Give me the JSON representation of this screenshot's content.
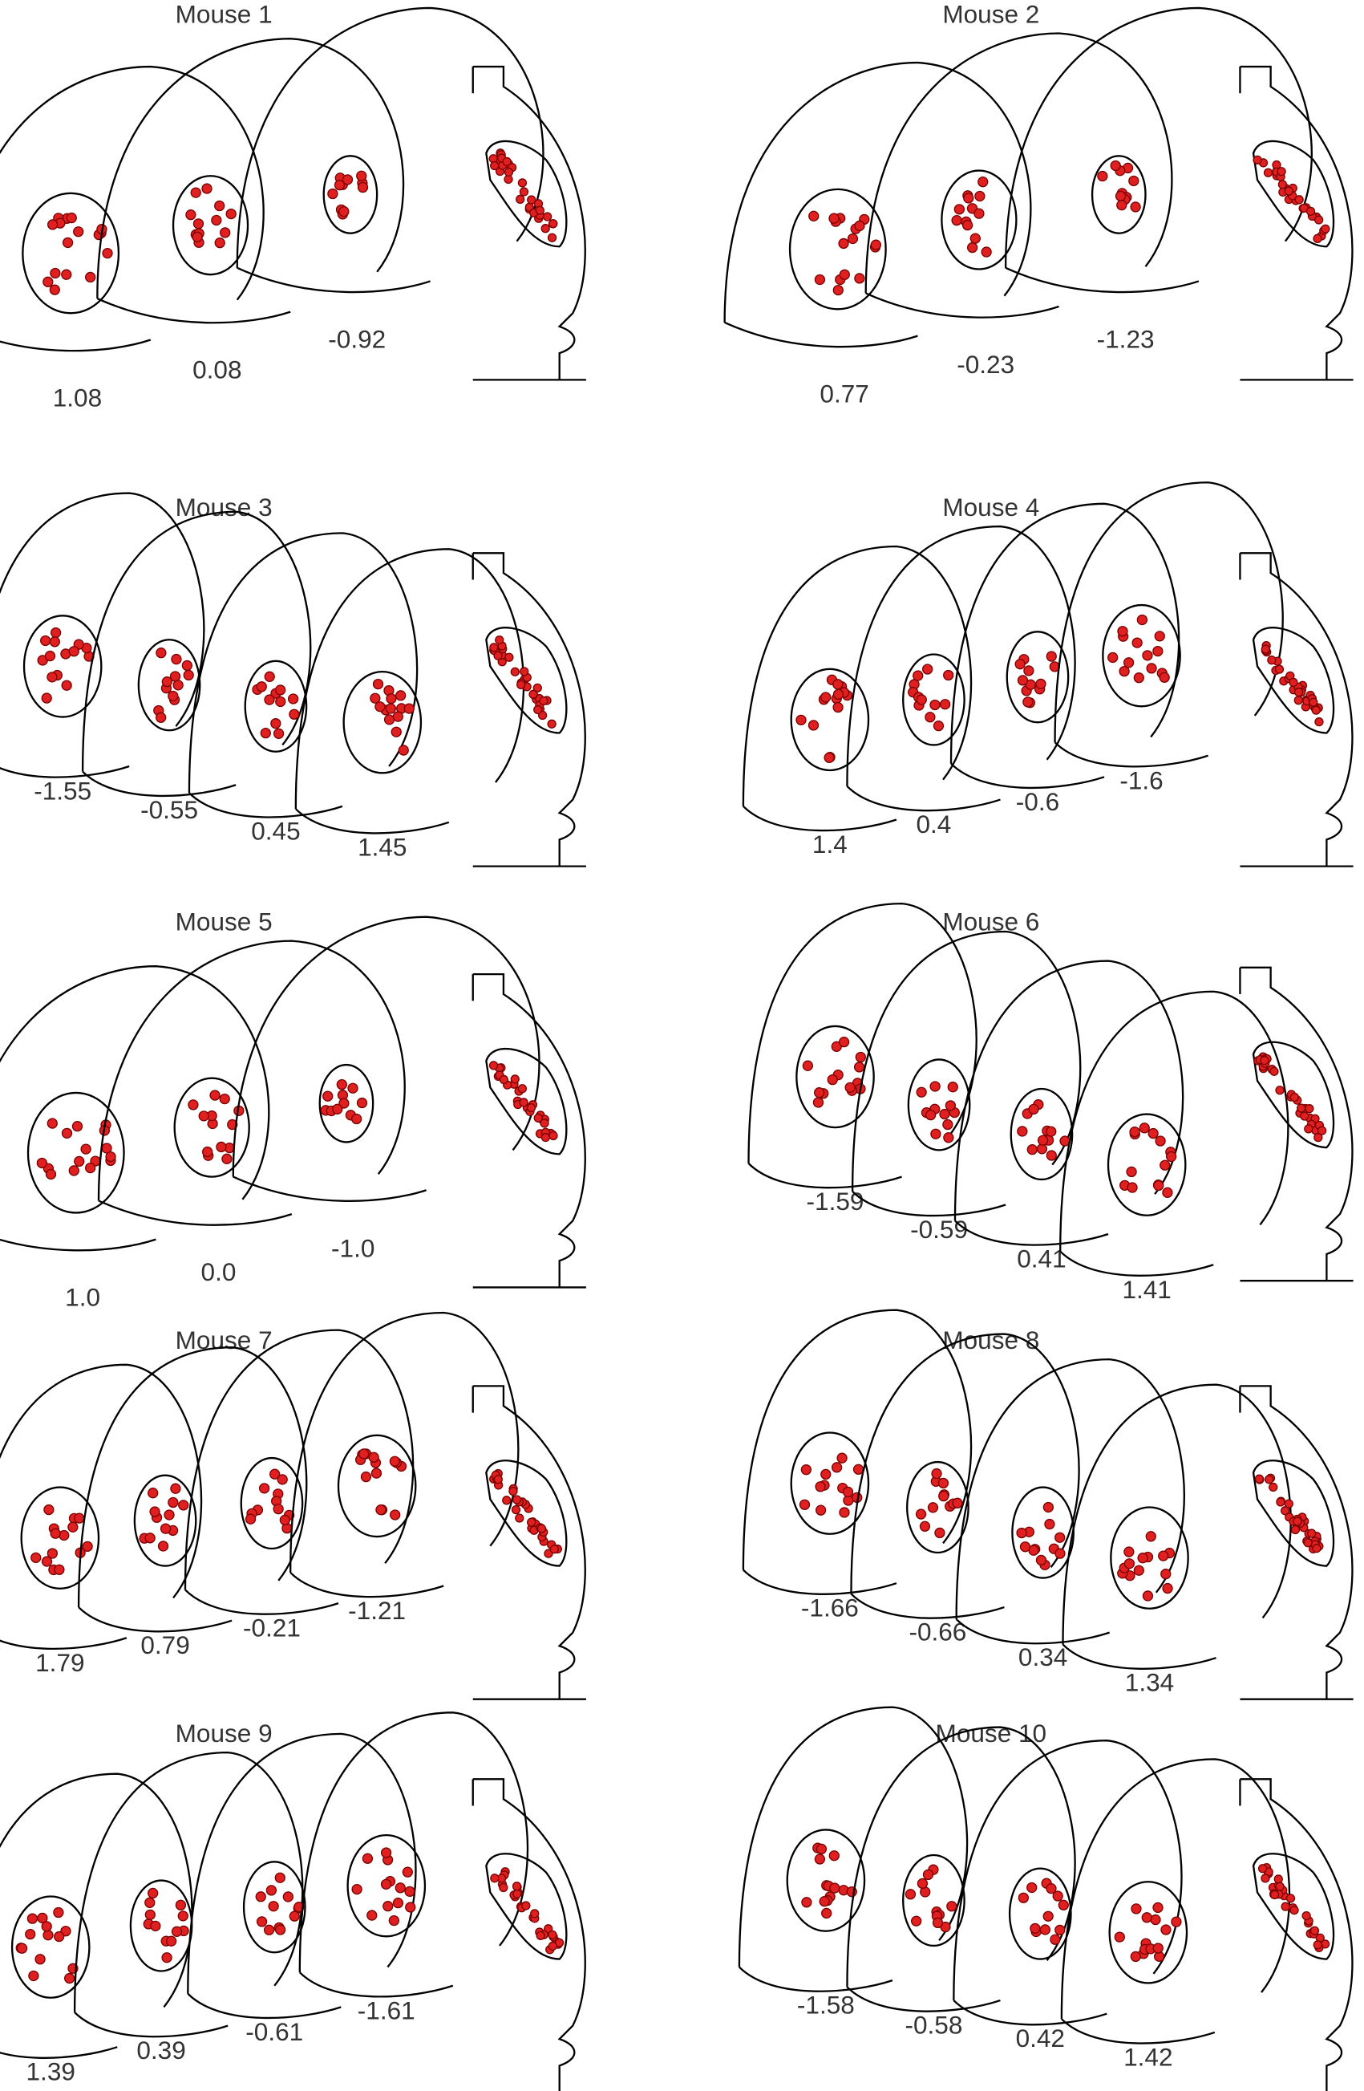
{
  "panels": [
    {
      "title": "Mouse 1",
      "sections": [
        "1.08",
        "0.08",
        "-0.92"
      ]
    },
    {
      "title": "Mouse 2",
      "sections": [
        "0.77",
        "-0.23",
        "-1.23"
      ]
    },
    {
      "title": "Mouse 3",
      "sections": [
        "-1.55",
        "-0.55",
        "0.45",
        "1.45"
      ]
    },
    {
      "title": "Mouse 4",
      "sections": [
        "1.4",
        "0.4",
        "-0.6",
        "-1.6"
      ]
    },
    {
      "title": "Mouse 5",
      "sections": [
        "1.0",
        "0.0",
        "-1.0"
      ]
    },
    {
      "title": "Mouse 6",
      "sections": [
        "-1.59",
        "-0.59",
        "0.41",
        "1.41"
      ]
    },
    {
      "title": "Mouse 7",
      "sections": [
        "1.79",
        "0.79",
        "-0.21",
        "-1.21"
      ]
    },
    {
      "title": "Mouse 8",
      "sections": [
        "-1.66",
        "-0.66",
        "0.34",
        "1.34"
      ]
    },
    {
      "title": "Mouse 9",
      "sections": [
        "1.39",
        "0.39",
        "-0.61",
        "-1.61"
      ]
    },
    {
      "title": "Mouse 10",
      "sections": [
        "-1.58",
        "-0.58",
        "0.42",
        "1.42"
      ]
    }
  ]
}
